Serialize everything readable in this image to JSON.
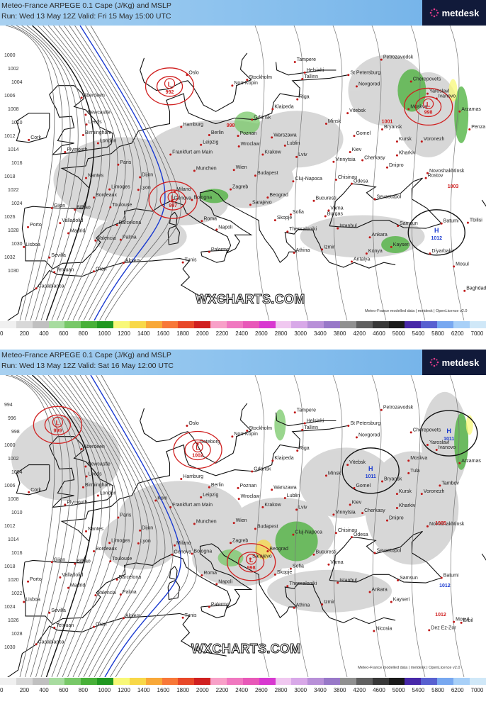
{
  "panels": [
    {
      "header_line1": "Meteo-France ARPEGE 0.1 Cape (J/Kg) and MSLP",
      "header_line2": "Run: Wed 13 May 12Z Valid: Fri 15 May 15:00 UTC",
      "watermark": "WXCHARTS.COM",
      "credit": "Meteo-France modelled data | metdesk | OpenLicence v2.0",
      "pressure_centers": [
        {
          "type": "L",
          "value": "992",
          "color": "#d02020",
          "lon": 8.6,
          "lat": 58.5
        },
        {
          "type": "L",
          "value": "998",
          "color": "#d02020",
          "lon": 40.0,
          "lat": 56.0
        },
        {
          "type": "L",
          "value": "997",
          "color": "#d02020",
          "lon": 9.0,
          "lat": 44.5
        },
        {
          "type": "H",
          "value": "1012",
          "color": "#1a3ad0",
          "lon": 41.0,
          "lat": 40.5
        }
      ],
      "extra_values": [
        {
          "value": "1003",
          "color": "#d02020",
          "lon": 43.0,
          "lat": 46.0
        },
        {
          "value": "998",
          "color": "#d02020",
          "lon": 16.0,
          "lat": 53.5
        },
        {
          "value": "1001",
          "color": "#d02020",
          "lon": 35.0,
          "lat": 54.0
        }
      ],
      "isobar_labels": [
        "1000",
        "1002",
        "1004",
        "1006",
        "1008",
        "1010",
        "1012",
        "1014",
        "1016",
        "1018",
        "1022",
        "1024",
        "1026",
        "1028",
        "1030",
        "1032",
        "1030"
      ],
      "cities": [
        "Tampere",
        "Petrozavodsk",
        "Helsinki",
        "St Petersburg",
        "Oslo",
        "Stockholm",
        "Tallinn",
        "Novgorod",
        "Cherepovets",
        "Yaroslavl",
        "Ivanovo",
        "Norr Kopin",
        "Riga",
        "Moskva",
        "Arzamas",
        "Aberdeen",
        "Klaipeda",
        "Vitebsk",
        "Bryansk",
        "Newcastle",
        "Leeds",
        "Hamburg",
        "Gdansk",
        "Minsk",
        "Kursk",
        "Voronezh",
        "Penza",
        "Birmingham",
        "London",
        "Berlin",
        "Poznan",
        "Warszawa",
        "Lublin",
        "Gomel",
        "Cork",
        "Plymouth",
        "Kiev",
        "Kharkiv",
        "Frankfurt am Main",
        "Leipzig",
        "Wroclaw",
        "Krakow",
        "Lviv",
        "Vinnytsia",
        "Cherkasy",
        "Dnipro",
        "Paris",
        "Munchen",
        "Wien",
        "Budapest",
        "Chisinau",
        "Odesa",
        "Rostov",
        "Nantes",
        "Dijon",
        "Lyon",
        "Zagreb",
        "Cluj-Napoca",
        "Bucuresti",
        "Novoshakhtinsk",
        "Bordeaux",
        "Limoges",
        "Toulouse",
        "Milano",
        "Genova",
        "Bologna",
        "Sarajevo",
        "Beograd",
        "Sofia",
        "Varna",
        "Sevastopol",
        "Tbilisi",
        "Gijon",
        "Bilbao",
        "Barcelona",
        "Roma",
        "Napoli",
        "Skopje",
        "Burgas",
        "Istanbul",
        "Samsun",
        "Batumi",
        "Porto",
        "Valladolid",
        "Madrid",
        "Valencia",
        "Palma",
        "Thessaloniki",
        "Izmir",
        "Ankara",
        "Kayseri",
        "Konya",
        "Antalya",
        "Diyarbakir",
        "Mosul",
        "Lisboa",
        "Sevilla",
        "Algiers",
        "Tunis",
        "Palermo",
        "Athina",
        "Casablanca",
        "Tetouan",
        "Oran",
        "Baghdad"
      ]
    },
    {
      "header_line1": "Meteo-France ARPEGE 0.1 Cape (J/Kg) and MSLP",
      "header_line2": "Run: Wed 13 May 12Z Valid: Sat 16 May 12:00 UTC",
      "watermark": "WXCHARTS.COM",
      "credit": "Meteo-France modelled data | metdesk | OpenLicence v2.0",
      "pressure_centers": [
        {
          "type": "L",
          "value": "999",
          "color": "#d02020",
          "lon": -5.0,
          "lat": 60.0
        },
        {
          "type": "L",
          "value": "1002",
          "color": "#d02020",
          "lon": 12.0,
          "lat": 57.0
        },
        {
          "type": "H",
          "value": "1011",
          "color": "#1a3ad0",
          "lon": 33.0,
          "lat": 54.5
        },
        {
          "type": "H",
          "value": "1011",
          "color": "#1a3ad0",
          "lon": 42.5,
          "lat": 59.0
        },
        {
          "type": "L",
          "value": "998",
          "color": "#d02020",
          "lon": 18.5,
          "lat": 43.5
        }
      ],
      "extra_values": [
        {
          "value": "1005",
          "color": "#d02020",
          "lon": 41.5,
          "lat": 48.0
        },
        {
          "value": "1012",
          "color": "#1a3ad0",
          "lon": 42.0,
          "lat": 40.5
        },
        {
          "value": "1012",
          "color": "#d02020",
          "lon": 41.5,
          "lat": 37.0
        }
      ],
      "isobar_labels": [
        "994",
        "996",
        "998",
        "1000",
        "1002",
        "1004",
        "1006",
        "1008",
        "1010",
        "1012",
        "1014",
        "1016",
        "1018",
        "1020",
        "1022",
        "1024",
        "1026",
        "1028",
        "1030"
      ],
      "cities": [
        "Tampere",
        "Petrozavodsk",
        "Helsinki",
        "St Petersburg",
        "Oslo",
        "Stockholm",
        "Tallinn",
        "Novgorod",
        "Cherepovets",
        "Yaroslavl",
        "Ivanovo",
        "Goteborg",
        "Norr Kopin",
        "Riga",
        "Moskva",
        "Tula",
        "Arzamas",
        "Aberdeen",
        "Klaipeda",
        "Vitebsk",
        "Bryansk",
        "Newcastle",
        "Leeds",
        "Hamburg",
        "Gdansk",
        "Minsk",
        "Kursk",
        "Voronezh",
        "Tambov",
        "Birmingham",
        "London",
        "Berlin",
        "Poznan",
        "Warszawa",
        "Lublin",
        "Gomel",
        "Cork",
        "Plymouth",
        "Koln",
        "Kiev",
        "Kharkiv",
        "Frankfurt am Main",
        "Leipzig",
        "Wroclaw",
        "Krakow",
        "Lviv",
        "Vinnytsia",
        "Cherkasy",
        "Dnipro",
        "Paris",
        "Munchen",
        "Wien",
        "Budapest",
        "Cluj-Napoca",
        "Chisinau",
        "Odesa",
        "Novoshakhtinsk",
        "Nantes",
        "Dijon",
        "Lyon",
        "Zagreb",
        "Bucuresti",
        "Bordeaux",
        "Limoges",
        "Toulouse",
        "Milano",
        "Genova",
        "Bologna",
        "Sarajevo",
        "Beograd",
        "Sofia",
        "Varna",
        "Sevastopol",
        "Gijon",
        "Bilbao",
        "Barcelona",
        "Roma",
        "Napoli",
        "Skopje",
        "Istanbul",
        "Samsun",
        "Batumi",
        "Porto",
        "Valladolid",
        "Madrid",
        "Valencia",
        "Palma",
        "Thessaloniki",
        "Izmir",
        "Ankara",
        "Kayseri",
        "Lisboa",
        "Sevilla",
        "Algiers",
        "Tunis",
        "Palermo",
        "Athina",
        "Casablanca",
        "Tetouan",
        "Oran",
        "Nicosia",
        "Mosul",
        "Dez Ez-Zor",
        "Erbil"
      ]
    }
  ],
  "logo_text": "metdesk",
  "colorbar_labels": [
    "0",
    "200",
    "400",
    "600",
    "800",
    "1000",
    "1200",
    "1400",
    "1600",
    "1800",
    "2000",
    "2200",
    "2400",
    "2600",
    "2800",
    "3000",
    "3400",
    "3800",
    "4200",
    "4600",
    "5000",
    "5400",
    "5800",
    "6200",
    "7000"
  ],
  "colorbar_colors": [
    "#f0f0f0",
    "#d8d8d8",
    "#c0c0c0",
    "#a8dca0",
    "#78c868",
    "#48b038",
    "#209820",
    "#f8f878",
    "#f8d848",
    "#f8a838",
    "#f87838",
    "#e84828",
    "#d02020",
    "#f8a0c8",
    "#f078c0",
    "#e858b8",
    "#d838d0",
    "#f0c8f0",
    "#d8a8e8",
    "#b890d8",
    "#9878c8",
    "#909090",
    "#606060",
    "#383838",
    "#1a1a1a",
    "#4828a8",
    "#5860d0",
    "#78a8f0",
    "#a8d0f8",
    "#d0e8f8"
  ]
}
